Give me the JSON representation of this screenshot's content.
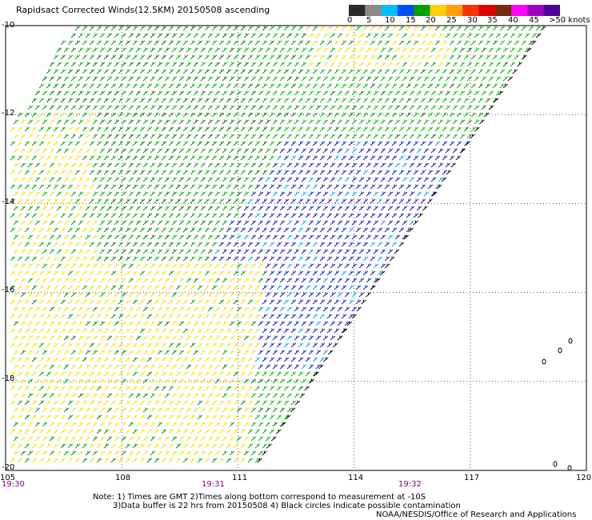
{
  "title": "Rapidsact Corrected Winds(12.5KM) 20150508 ascending",
  "colorbar": {
    "labels": [
      "0",
      "5",
      "10",
      "15",
      "20",
      "25",
      "30",
      "35",
      "40",
      "45",
      ">50 knots"
    ],
    "colors": [
      "#2b2b2b",
      "#8a8a8a",
      "#00bfff",
      "#0050ff",
      "#00a000",
      "#ffd000",
      "#ffa000",
      "#ff3000",
      "#e00000",
      "#7a2a10",
      "#ff00ff",
      "#a000c0",
      "#5000a0"
    ]
  },
  "latitudes": [
    "-10",
    "-12",
    "-14",
    "-16",
    "-18",
    "-20"
  ],
  "longitudes": [
    "105",
    "108",
    "111",
    "114",
    "117",
    "120"
  ],
  "times": [
    "19:30",
    "19:31",
    "19:32"
  ],
  "notes": {
    "line1": "Note: 1) Times are GMT 2)Times along bottom correspond to measurement at -10S",
    "line2": "3)Data buffer is 22 hrs from 20150508 4) Black circles indicate possible contamination",
    "line3": "NOAA/NESDIS/Office of Research and Applications"
  },
  "map": {
    "lat_range": [
      -20,
      -10
    ],
    "lon_range": [
      105,
      120
    ],
    "gridlines": "dotted",
    "wind_speed_regions": [
      "yellow 20-25 kt southwest",
      "green 15-20 kt central",
      "blue 10-15 kt southeast",
      "dark green 15-20 kt north-west"
    ]
  }
}
